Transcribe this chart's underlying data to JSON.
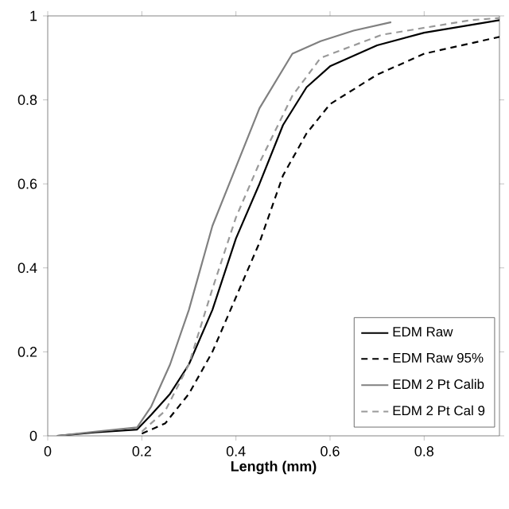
{
  "chart_data": {
    "type": "line",
    "xlabel": "Length (mm)",
    "xlim": [
      0,
      0.96
    ],
    "ylim": [
      0,
      1
    ],
    "xticks": [
      0,
      0.2,
      0.4,
      0.6,
      0.8
    ],
    "yticks": [
      0,
      0.2,
      0.4,
      0.6,
      0.8,
      1
    ],
    "grid": false,
    "legend": "bottom right",
    "marker": "none",
    "series": [
      {
        "name": "EDM Raw",
        "color": "#000000",
        "line_style": "solid",
        "x": [
          0.02,
          0.1,
          0.19,
          0.22,
          0.26,
          0.3,
          0.35,
          0.4,
          0.45,
          0.5,
          0.55,
          0.6,
          0.7,
          0.8,
          0.96
        ],
        "values": [
          0,
          0.008,
          0.015,
          0.05,
          0.1,
          0.17,
          0.3,
          0.47,
          0.6,
          0.74,
          0.83,
          0.88,
          0.93,
          0.96,
          0.99
        ]
      },
      {
        "name": "EDM Raw 95%",
        "color": "#000000",
        "line_style": "dashed",
        "x": [
          0.2,
          0.25,
          0.3,
          0.35,
          0.4,
          0.45,
          0.5,
          0.55,
          0.6,
          0.7,
          0.8,
          0.96
        ],
        "values": [
          0.005,
          0.03,
          0.1,
          0.2,
          0.33,
          0.46,
          0.62,
          0.72,
          0.79,
          0.86,
          0.91,
          0.95
        ]
      },
      {
        "name": "EDM 2 Pt Calib",
        "color": "#808080",
        "line_style": "solid",
        "x": [
          0.02,
          0.1,
          0.19,
          0.22,
          0.26,
          0.3,
          0.35,
          0.4,
          0.45,
          0.52,
          0.58,
          0.65,
          0.73
        ],
        "values": [
          0,
          0.01,
          0.02,
          0.07,
          0.17,
          0.3,
          0.5,
          0.64,
          0.78,
          0.91,
          0.94,
          0.965,
          0.985
        ]
      },
      {
        "name": "EDM 2 Pt Cal 9",
        "color": "#999999",
        "line_style": "dashed",
        "x": [
          0.2,
          0.25,
          0.3,
          0.35,
          0.4,
          0.45,
          0.52,
          0.58,
          0.71,
          0.9,
          0.96
        ],
        "values": [
          0.01,
          0.06,
          0.17,
          0.35,
          0.52,
          0.65,
          0.81,
          0.9,
          0.955,
          0.99,
          0.995
        ]
      }
    ]
  }
}
